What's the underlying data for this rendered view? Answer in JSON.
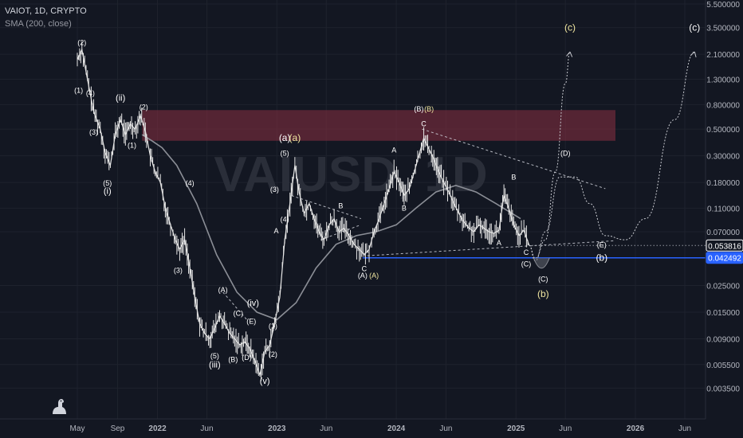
{
  "legend": {
    "symbol_line": "VAIOT, 1D, CRYPTO",
    "indicator_line": "SMA (200, close)"
  },
  "watermark": "VAIUSD, 1D",
  "colors": {
    "background": "#131722",
    "grid": "#1e222d",
    "price": "#e6e6e6",
    "sma": "#8b8e96",
    "resistance_zone": "#8a2f42",
    "support_line": "#2962ff",
    "trend_dashed": "#d1d4dc",
    "wave_label": "#ffffff",
    "wave_label_alt": "#f0e6a0"
  },
  "chart_data": {
    "type": "line",
    "scale": "log",
    "x_tick_labels": [
      "May",
      "Sep",
      "2022",
      "Jun",
      "2023",
      "Jun",
      "2024",
      "Jun",
      "2025",
      "Jun",
      "2026",
      "Jun"
    ],
    "y_tick_labels": [
      "5.500000",
      "3.500000",
      "2.100000",
      "1.300000",
      "0.800000",
      "0.500000",
      "0.300000",
      "0.180000",
      "0.110000",
      "0.070000",
      "0.025000",
      "0.015000",
      "0.009000",
      "0.005500",
      "0.003500"
    ],
    "ylim": [
      0.0028,
      5.5
    ],
    "price_labels": [
      {
        "value": "0.053816",
        "color": "#ffffff",
        "bg": "#131722",
        "border": "#ffffff"
      },
      {
        "value": "0.042492",
        "color": "#ffffff",
        "bg": "#2962ff",
        "border": "#2962ff"
      }
    ],
    "series": [
      {
        "name": "VAIOT",
        "x": [
          "2021-05-01",
          "2021-05-15",
          "2021-06-01",
          "2021-06-20",
          "2021-07-10",
          "2021-07-25",
          "2021-08-10",
          "2021-08-25",
          "2021-09-10",
          "2021-09-25",
          "2021-10-10",
          "2021-10-25",
          "2021-11-10",
          "2021-11-25",
          "2021-12-10",
          "2021-12-25",
          "2022-01-10",
          "2022-01-25",
          "2022-02-10",
          "2022-02-25",
          "2022-03-10",
          "2022-03-25",
          "2022-04-10",
          "2022-04-25",
          "2022-05-10",
          "2022-05-25",
          "2022-06-10",
          "2022-06-25",
          "2022-07-10",
          "2022-07-25",
          "2022-08-10",
          "2022-08-25",
          "2022-09-10",
          "2022-09-25",
          "2022-10-10",
          "2022-10-25",
          "2022-11-10",
          "2022-11-25",
          "2022-12-10",
          "2022-12-25",
          "2023-01-10",
          "2023-01-25",
          "2023-02-10",
          "2023-02-25",
          "2023-03-10",
          "2023-03-25",
          "2023-04-10",
          "2023-04-25",
          "2023-05-10",
          "2023-05-25",
          "2023-06-10",
          "2023-06-25",
          "2023-07-10",
          "2023-07-25",
          "2023-08-10",
          "2023-08-25",
          "2023-09-10",
          "2023-09-25",
          "2023-10-10",
          "2023-10-25",
          "2023-11-10",
          "2023-11-25",
          "2023-12-10",
          "2023-12-25",
          "2024-01-10",
          "2024-01-25",
          "2024-02-10",
          "2024-02-25",
          "2024-03-10",
          "2024-03-25",
          "2024-04-10",
          "2024-04-25",
          "2024-05-10",
          "2024-05-25",
          "2024-06-10",
          "2024-06-25",
          "2024-07-10",
          "2024-07-25",
          "2024-08-10",
          "2024-08-25",
          "2024-09-10",
          "2024-09-25",
          "2024-10-10",
          "2024-10-25",
          "2024-11-10",
          "2024-11-25",
          "2024-12-10",
          "2024-12-25",
          "2025-01-10",
          "2025-01-25",
          "2025-02-10"
        ],
        "values": [
          1.9,
          2.3,
          1.3,
          0.7,
          0.5,
          0.32,
          0.25,
          0.45,
          0.6,
          0.45,
          0.55,
          0.5,
          0.65,
          0.48,
          0.3,
          0.22,
          0.18,
          0.11,
          0.08,
          0.06,
          0.05,
          0.06,
          0.035,
          0.02,
          0.012,
          0.01,
          0.009,
          0.011,
          0.014,
          0.012,
          0.01,
          0.009,
          0.008,
          0.0085,
          0.0075,
          0.006,
          0.0045,
          0.007,
          0.008,
          0.012,
          0.02,
          0.06,
          0.12,
          0.25,
          0.15,
          0.1,
          0.12,
          0.09,
          0.07,
          0.06,
          0.08,
          0.09,
          0.07,
          0.075,
          0.065,
          0.055,
          0.05,
          0.045,
          0.05,
          0.07,
          0.09,
          0.12,
          0.16,
          0.22,
          0.18,
          0.14,
          0.16,
          0.22,
          0.3,
          0.42,
          0.34,
          0.28,
          0.22,
          0.18,
          0.15,
          0.12,
          0.1,
          0.085,
          0.075,
          0.07,
          0.08,
          0.075,
          0.07,
          0.068,
          0.072,
          0.14,
          0.11,
          0.08,
          0.065,
          0.072,
          0.054
        ]
      },
      {
        "name": "SMA (200, close)",
        "x": [
          "2021-11-15",
          "2021-12-15",
          "2022-01-15",
          "2022-03-01",
          "2022-05-01",
          "2022-07-01",
          "2022-09-01",
          "2022-11-01",
          "2023-01-01",
          "2023-03-01",
          "2023-05-01",
          "2023-07-01",
          "2023-09-01",
          "2023-11-01",
          "2024-01-01",
          "2024-03-01",
          "2024-05-01",
          "2024-07-01",
          "2024-09-01",
          "2024-11-01",
          "2025-01-15"
        ],
        "values": [
          0.45,
          0.4,
          0.35,
          0.25,
          0.12,
          0.045,
          0.022,
          0.015,
          0.013,
          0.018,
          0.035,
          0.055,
          0.065,
          0.07,
          0.08,
          0.11,
          0.15,
          0.17,
          0.15,
          0.12,
          0.09
        ]
      }
    ],
    "projections": [
      {
        "name": "path-1",
        "x": [
          "2025-02-10",
          "2025-03-01",
          "2025-04-01",
          "2025-05-01",
          "2025-06-01",
          "2025-06-15"
        ],
        "values": [
          0.054,
          0.042,
          0.06,
          0.22,
          1.2,
          2.2
        ]
      },
      {
        "name": "path-2",
        "x": [
          "2025-02-10",
          "2025-03-01",
          "2025-04-01",
          "2025-05-15",
          "2025-07-01",
          "2025-08-15",
          "2025-10-01",
          "2025-12-01",
          "2026-02-01",
          "2026-05-01",
          "2026-07-01"
        ],
        "values": [
          0.054,
          0.04,
          0.07,
          0.2,
          0.2,
          0.12,
          0.065,
          0.06,
          0.09,
          0.6,
          2.2
        ]
      }
    ],
    "trend_lines": [
      {
        "name": "upper-trendline",
        "x": [
          "2024-03-20",
          "2025-10-01"
        ],
        "values": [
          0.5,
          0.16
        ]
      },
      {
        "name": "lower-trendline",
        "x": [
          "2023-09-20",
          "2025-11-01"
        ],
        "values": [
          0.044,
          0.059
        ]
      },
      {
        "name": "triangle-upper",
        "x": [
          "2023-02-15",
          "2023-09-15"
        ],
        "values": [
          0.14,
          0.09
        ]
      },
      {
        "name": "triangle-lower",
        "x": [
          "2023-05-15",
          "2023-09-15"
        ],
        "values": [
          0.06,
          0.08
        ]
      },
      {
        "name": "wave-c-upper",
        "x": [
          "2022-07-20",
          "2022-10-01"
        ],
        "values": [
          0.022,
          0.013
        ]
      }
    ],
    "resistance_zone": {
      "x": [
        "2021-11-15",
        "2025-11-01"
      ],
      "values": [
        0.4,
        0.72
      ]
    },
    "support_level": 0.042492,
    "wave_labels": [
      {
        "text": "(2)",
        "x": "2021-05-15",
        "y": 2.5,
        "alt": false
      },
      {
        "text": "(1)",
        "x": "2021-05-05",
        "y": 1.0,
        "alt": false
      },
      {
        "text": "(4)",
        "x": "2021-06-10",
        "y": 0.95,
        "alt": false
      },
      {
        "text": "(3)",
        "x": "2021-06-20",
        "y": 0.45,
        "alt": false
      },
      {
        "text": "(5)",
        "x": "2021-08-01",
        "y": 0.17,
        "alt": false
      },
      {
        "text": "(i)",
        "x": "2021-08-01",
        "y": 0.145,
        "alt": false
      },
      {
        "text": "(ii)",
        "x": "2021-09-10",
        "y": 0.86,
        "alt": false
      },
      {
        "text": "(2)",
        "x": "2021-11-20",
        "y": 0.73,
        "alt": false
      },
      {
        "text": "(1)",
        "x": "2021-10-15",
        "y": 0.35,
        "alt": false
      },
      {
        "text": "(4)",
        "x": "2022-04-10",
        "y": 0.17,
        "alt": false
      },
      {
        "text": "(3)",
        "x": "2022-03-05",
        "y": 0.032,
        "alt": false
      },
      {
        "text": "(A)",
        "x": "2022-07-20",
        "y": 0.022,
        "alt": false
      },
      {
        "text": "(C)",
        "x": "2022-09-05",
        "y": 0.014,
        "alt": false
      },
      {
        "text": "(iv)",
        "x": "2022-10-20",
        "y": 0.017,
        "alt": false
      },
      {
        "text": "(E)",
        "x": "2022-10-15",
        "y": 0.012,
        "alt": false
      },
      {
        "text": "(1)",
        "x": "2022-12-20",
        "y": 0.011,
        "alt": false
      },
      {
        "text": "(5)",
        "x": "2022-06-25",
        "y": 0.0062,
        "alt": false
      },
      {
        "text": "(iii)",
        "x": "2022-06-25",
        "y": 0.0052,
        "alt": false
      },
      {
        "text": "(B)",
        "x": "2022-08-20",
        "y": 0.0058,
        "alt": false
      },
      {
        "text": "(D)",
        "x": "2022-10-01",
        "y": 0.006,
        "alt": false
      },
      {
        "text": "(2)",
        "x": "2022-12-20",
        "y": 0.0064,
        "alt": false
      },
      {
        "text": "(v)",
        "x": "2022-11-25",
        "y": 0.0038,
        "alt": false
      },
      {
        "text": "(a)",
        "x": "2023-01-25",
        "y": 0.4,
        "alt": false
      },
      {
        "text": "(a)",
        "x": "2023-02-25",
        "y": 0.4,
        "alt": true
      },
      {
        "text": "(5)",
        "x": "2023-01-25",
        "y": 0.3,
        "alt": false
      },
      {
        "text": "(3)",
        "x": "2022-12-25",
        "y": 0.15,
        "alt": false
      },
      {
        "text": "(4)",
        "x": "2023-01-25",
        "y": 0.085,
        "alt": false
      },
      {
        "text": "A",
        "x": "2022-12-30",
        "y": 0.068,
        "alt": false
      },
      {
        "text": "B",
        "x": "2023-07-15",
        "y": 0.11,
        "alt": false
      },
      {
        "text": "C",
        "x": "2023-09-25",
        "y": 0.033,
        "alt": false
      },
      {
        "text": "(A)",
        "x": "2023-09-20",
        "y": 0.029,
        "alt": false
      },
      {
        "text": "(A)",
        "x": "2023-10-25",
        "y": 0.029,
        "alt": true
      },
      {
        "text": "A",
        "x": "2023-12-25",
        "y": 0.32,
        "alt": false
      },
      {
        "text": "B",
        "x": "2024-01-25",
        "y": 0.105,
        "alt": false
      },
      {
        "text": "(B)",
        "x": "2024-03-10",
        "y": 0.7,
        "alt": false
      },
      {
        "text": "(B)",
        "x": "2024-04-10",
        "y": 0.7,
        "alt": true
      },
      {
        "text": "C",
        "x": "2024-03-25",
        "y": 0.53,
        "alt": false
      },
      {
        "text": "B",
        "x": "2024-12-25",
        "y": 0.19,
        "alt": false
      },
      {
        "text": "A",
        "x": "2024-11-10",
        "y": 0.054,
        "alt": false
      },
      {
        "text": "C",
        "x": "2025-02-01",
        "y": 0.045,
        "alt": false
      },
      {
        "text": "(C)",
        "x": "2025-02-01",
        "y": 0.036,
        "alt": false
      },
      {
        "text": "(C)",
        "x": "2025-03-25",
        "y": 0.027,
        "alt": false
      },
      {
        "text": "(b)",
        "x": "2025-03-25",
        "y": 0.02,
        "alt": true
      },
      {
        "text": "(D)",
        "x": "2025-06-01",
        "y": 0.3,
        "alt": false
      },
      {
        "text": "(E)",
        "x": "2025-09-20",
        "y": 0.052,
        "alt": false
      },
      {
        "text": "(b)",
        "x": "2025-09-20",
        "y": 0.04,
        "alt": false
      },
      {
        "text": "(c)",
        "x": "2025-06-15",
        "y": 3.3,
        "alt": true
      },
      {
        "text": "(c)",
        "x": "2026-07-01",
        "y": 3.3,
        "alt": false
      }
    ]
  }
}
